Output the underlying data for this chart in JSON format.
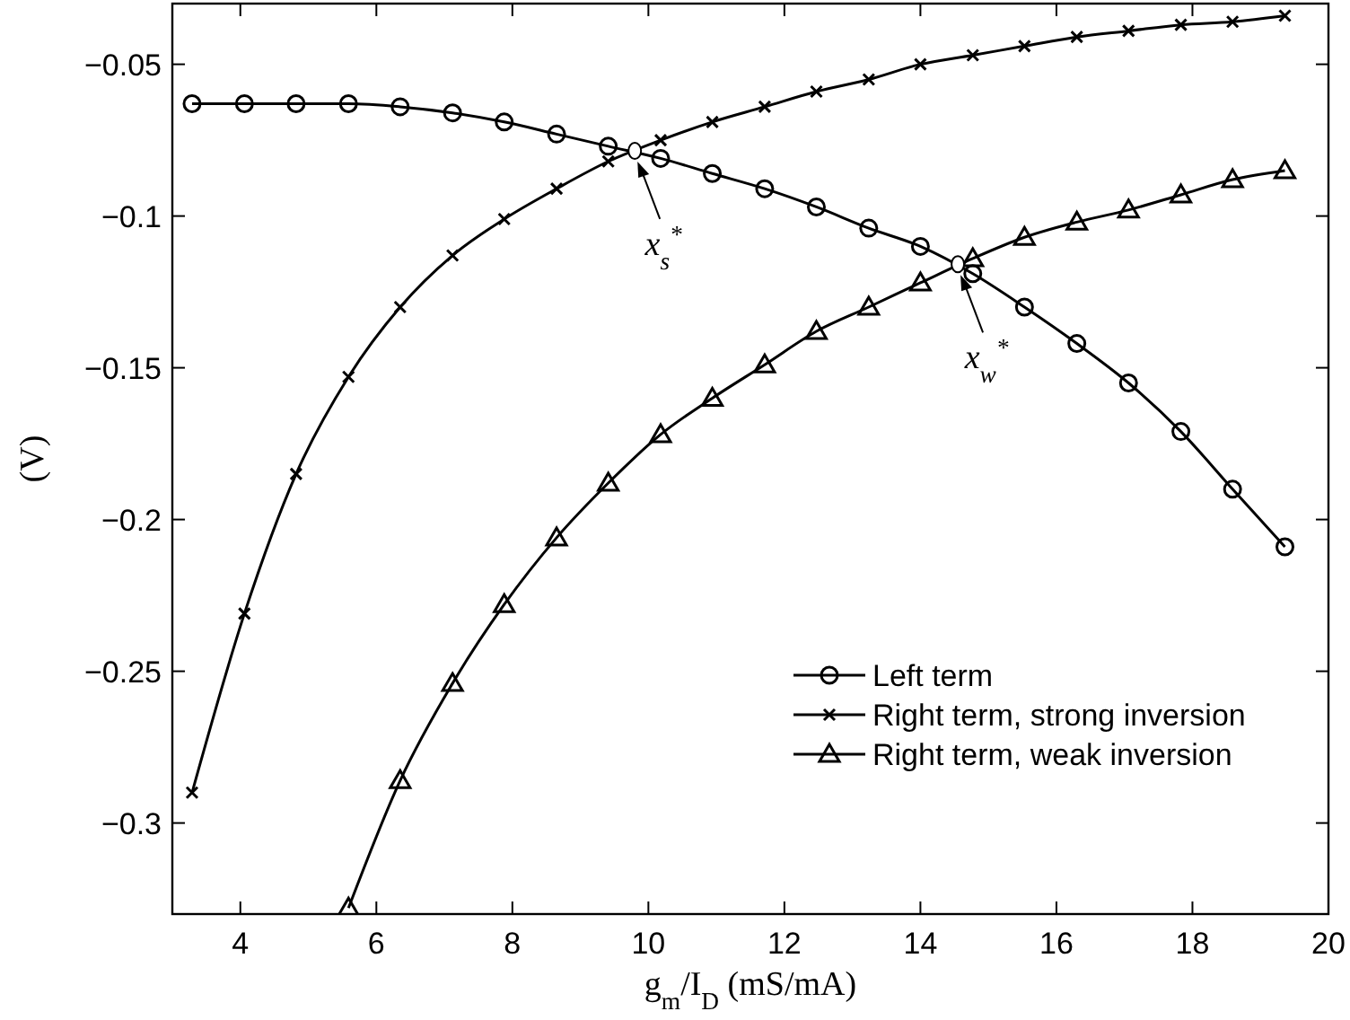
{
  "chart_data": {
    "type": "line",
    "xlabel": "g$_{m}$/I$_{D}$ (mS/mA)",
    "ylabel": "(V)",
    "xlim": [
      3,
      20
    ],
    "ylim": [
      -0.33,
      -0.03
    ],
    "xticks": [
      4,
      6,
      8,
      10,
      12,
      14,
      16,
      18,
      20
    ],
    "yticks": [
      {
        "value": -0.3,
        "label": "−0.3"
      },
      {
        "value": -0.25,
        "label": "−0.25"
      },
      {
        "value": -0.2,
        "label": "−0.2"
      },
      {
        "value": -0.15,
        "label": "−0.15"
      },
      {
        "value": -0.1,
        "label": "−0.1"
      },
      {
        "value": -0.05,
        "label": "−0.05"
      }
    ],
    "grid": false,
    "legend": "bottom right",
    "line_style": "solid",
    "series": [
      {
        "name": "Left term",
        "color": "#000000",
        "marker": "circle",
        "x": [
          3.29,
          4.06,
          4.82,
          5.59,
          6.35,
          7.12,
          7.88,
          8.65,
          9.41,
          10.18,
          10.94,
          11.71,
          12.47,
          13.24,
          14.0,
          14.77,
          15.53,
          16.3,
          17.06,
          17.83,
          18.59,
          19.36
        ],
        "values": [
          -0.063,
          -0.063,
          -0.063,
          -0.063,
          -0.064,
          -0.066,
          -0.069,
          -0.073,
          -0.077,
          -0.081,
          -0.086,
          -0.091,
          -0.097,
          -0.104,
          -0.11,
          -0.119,
          -0.13,
          -0.142,
          -0.155,
          -0.171,
          -0.19,
          -0.209
        ]
      },
      {
        "name": "Right term, strong inversion",
        "color": "#000000",
        "marker": "cross",
        "x": [
          3.29,
          4.06,
          4.82,
          5.59,
          6.35,
          7.12,
          7.88,
          8.65,
          9.41,
          10.18,
          10.94,
          11.71,
          12.47,
          13.24,
          14.0,
          14.77,
          15.53,
          16.3,
          17.06,
          17.83,
          18.59,
          19.36
        ],
        "values": [
          -0.29,
          -0.231,
          -0.185,
          -0.153,
          -0.13,
          -0.113,
          -0.101,
          -0.091,
          -0.082,
          -0.075,
          -0.069,
          -0.064,
          -0.059,
          -0.055,
          -0.05,
          -0.047,
          -0.044,
          -0.041,
          -0.039,
          -0.037,
          -0.036,
          -0.034
        ]
      },
      {
        "name": "Right term, weak inversion",
        "color": "#000000",
        "marker": "triangle",
        "x": [
          5.59,
          6.35,
          7.12,
          7.88,
          8.65,
          9.41,
          10.18,
          10.94,
          11.71,
          12.47,
          13.24,
          14.0,
          14.77,
          15.53,
          16.3,
          17.06,
          17.83,
          18.59,
          19.36
        ],
        "values": [
          -0.328,
          -0.286,
          -0.254,
          -0.228,
          -0.206,
          -0.188,
          -0.172,
          -0.16,
          -0.149,
          -0.138,
          -0.13,
          -0.122,
          -0.114,
          -0.107,
          -0.102,
          -0.098,
          -0.093,
          -0.088,
          -0.085
        ]
      }
    ],
    "annotations": [
      {
        "text": "x$_{s}$$^{*}$",
        "x": 9.8,
        "y": -0.0785
      },
      {
        "text": "x$_{w}$$^{*}$",
        "x": 14.55,
        "y": -0.1159
      }
    ]
  }
}
